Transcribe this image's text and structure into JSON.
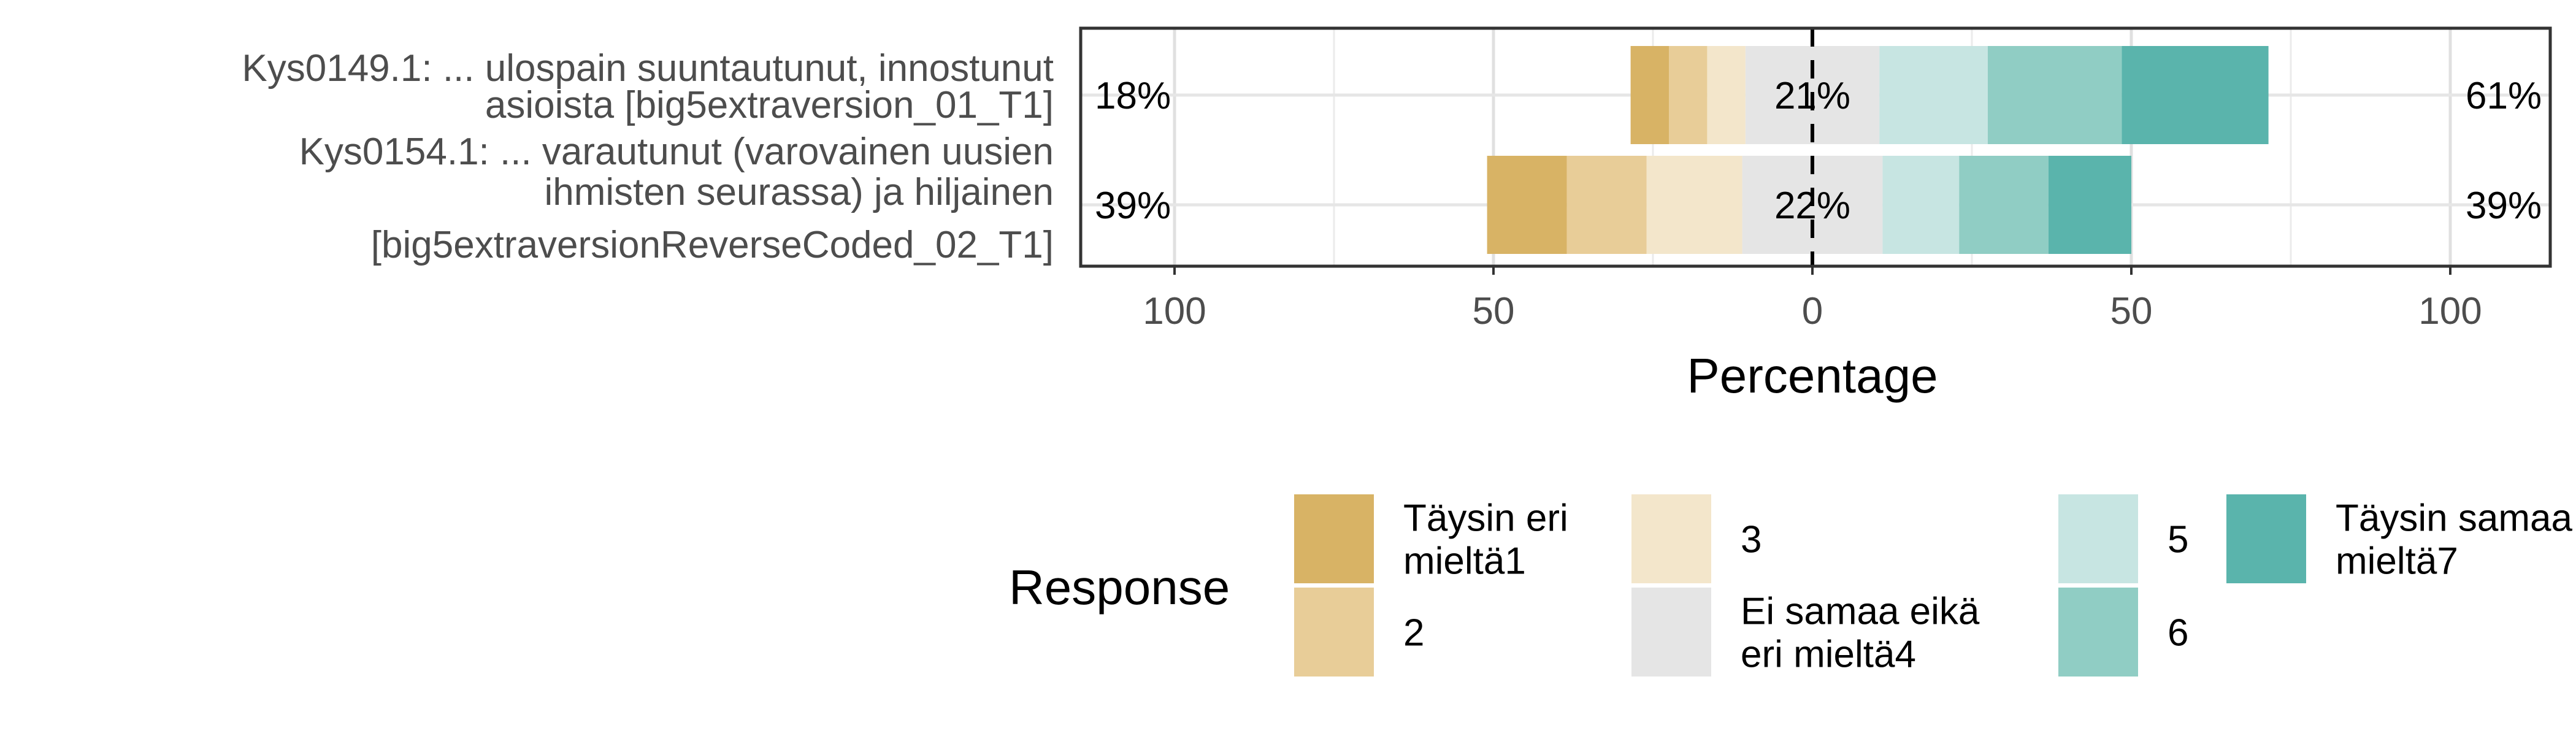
{
  "chart_data": {
    "type": "bar",
    "orientation": "horizontal-diverging",
    "xlabel": "Percentage",
    "xlim": [
      -115,
      115
    ],
    "xticks": [
      {
        "value": -100,
        "label": "100"
      },
      {
        "value": -50,
        "label": "50"
      },
      {
        "value": 0,
        "label": "0"
      },
      {
        "value": 50,
        "label": "50"
      },
      {
        "value": 100,
        "label": "100"
      }
    ],
    "grid": true,
    "legend_position": "bottom",
    "items": [
      {
        "label_lines": [
          "Kys0149.1: ... ulospain suuntautunut, innostunut",
          "asioista [big5extraversion_01_T1]"
        ],
        "values": [
          6,
          6,
          6,
          21,
          17,
          21,
          23
        ],
        "left_pct": "18%",
        "center_pct": "21%",
        "right_pct": "61%"
      },
      {
        "label_lines": [
          "Kys0154.1: ... varautunut (varovainen uusien",
          "ihmisten seurassa) ja hiljainen",
          "[big5extraversionReverseCoded_02_T1]"
        ],
        "values": [
          12.5,
          12.5,
          15,
          22,
          12,
          14,
          13
        ],
        "left_pct": "39%",
        "center_pct": "22%",
        "right_pct": "39%"
      }
    ],
    "legend": {
      "title": "Response",
      "entries": [
        {
          "label_lines": [
            "Täysin eri",
            "mieltä1"
          ],
          "color": "#d8b365"
        },
        {
          "label_lines": [
            "2"
          ],
          "color": "#e8cd98"
        },
        {
          "label_lines": [
            "3"
          ],
          "color": "#f3e6cb"
        },
        {
          "label_lines": [
            "Ei samaa eikä",
            "eri mieltä4"
          ],
          "color": "#e5e5e5"
        },
        {
          "label_lines": [
            "5"
          ],
          "color": "#c7e5e2"
        },
        {
          "label_lines": [
            "6"
          ],
          "color": "#90cdc4"
        },
        {
          "label_lines": [
            "Täysin samaa",
            "mieltä7"
          ],
          "color": "#5ab4ac"
        }
      ]
    }
  }
}
